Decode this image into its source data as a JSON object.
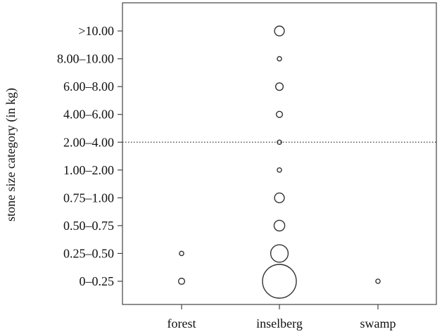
{
  "chart_data": {
    "type": "scatter",
    "title": "",
    "xlabel": "",
    "ylabel": "stone size category (in kg)",
    "x_categories": [
      "forest",
      "inselberg",
      "swamp"
    ],
    "y_categories": [
      "0–0.25",
      "0.25–0.50",
      "0.50–0.75",
      "0.75–1.00",
      "1.00–2.00",
      "2.00–4.00",
      "4.00–6.00",
      "6.00–8.00",
      "8.00–10.00",
      ">10.00"
    ],
    "points": [
      {
        "x": "forest",
        "y": "0–0.25",
        "size": 2
      },
      {
        "x": "forest",
        "y": "0.25–0.50",
        "size": 1
      },
      {
        "x": "inselberg",
        "y": "0–0.25",
        "size": 60
      },
      {
        "x": "inselberg",
        "y": "0.25–0.50",
        "size": 16
      },
      {
        "x": "inselberg",
        "y": "0.50–0.75",
        "size": 6
      },
      {
        "x": "inselberg",
        "y": "0.75–1.00",
        "size": 5
      },
      {
        "x": "inselberg",
        "y": "1.00–2.00",
        "size": 1
      },
      {
        "x": "inselberg",
        "y": "2.00–4.00",
        "size": 1
      },
      {
        "x": "inselberg",
        "y": "4.00–6.00",
        "size": 2
      },
      {
        "x": "inselberg",
        "y": "6.00–8.00",
        "size": 3
      },
      {
        "x": "inselberg",
        "y": "8.00–10.00",
        "size": 1
      },
      {
        "x": "inselberg",
        "y": ">10.00",
        "size": 5
      },
      {
        "x": "swamp",
        "y": "0–0.25",
        "size": 1
      }
    ],
    "reference_line": {
      "y": "2.00–4.00",
      "style": "dotted"
    },
    "grid": false,
    "legend": "none"
  }
}
